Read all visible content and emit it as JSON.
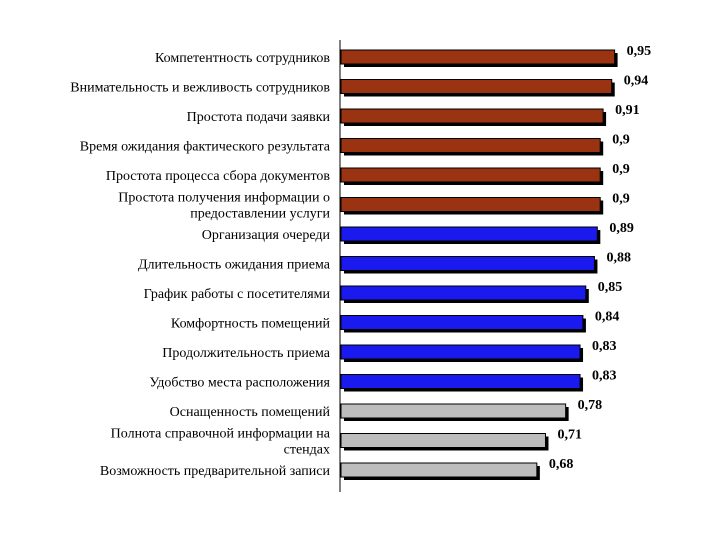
{
  "chart_data": {
    "type": "bar",
    "orientation": "horizontal",
    "title": "",
    "xlabel": "",
    "ylabel": "",
    "grid": false,
    "legend": "none",
    "xlim": [
      0,
      1
    ],
    "categories": [
      [
        "Компетентность сотрудников"
      ],
      [
        "Внимательность и вежливость сотрудников"
      ],
      [
        "Простота подачи заявки"
      ],
      [
        "Время ожидания фактического результата"
      ],
      [
        "Простота процесса сбора документов"
      ],
      [
        "Простота получения информации о",
        "предоставлении услуги"
      ],
      [
        "Организация очереди"
      ],
      [
        "Длительность ожидания приема"
      ],
      [
        "График работы с посетителями"
      ],
      [
        "Комфортность помещений"
      ],
      [
        "Продолжительность приема"
      ],
      [
        "Удобство места расположения"
      ],
      [
        "Оснащенность помещений"
      ],
      [
        "Полнота справочной информации на",
        "стендах"
      ],
      [
        "Возможность предварительной записи"
      ]
    ],
    "values": [
      0.95,
      0.94,
      0.91,
      0.9,
      0.9,
      0.9,
      0.89,
      0.88,
      0.85,
      0.84,
      0.83,
      0.83,
      0.78,
      0.71,
      0.68
    ],
    "value_labels": [
      "0,95",
      "0,94",
      "0,91",
      "0,9",
      "0,9",
      "0,9",
      "0,89",
      "0,88",
      "0,85",
      "0,84",
      "0,83",
      "0,83",
      "0,78",
      "0,71",
      "0,68"
    ],
    "groups": [
      "brown",
      "brown",
      "brown",
      "brown",
      "brown",
      "brown",
      "blue",
      "blue",
      "blue",
      "blue",
      "blue",
      "blue",
      "gray",
      "gray",
      "gray"
    ],
    "colors": {
      "brown": "#993311",
      "blue": "#1a1aee",
      "gray": "#bdbdbd",
      "shadow": "#000000",
      "outline": "#000000"
    }
  }
}
